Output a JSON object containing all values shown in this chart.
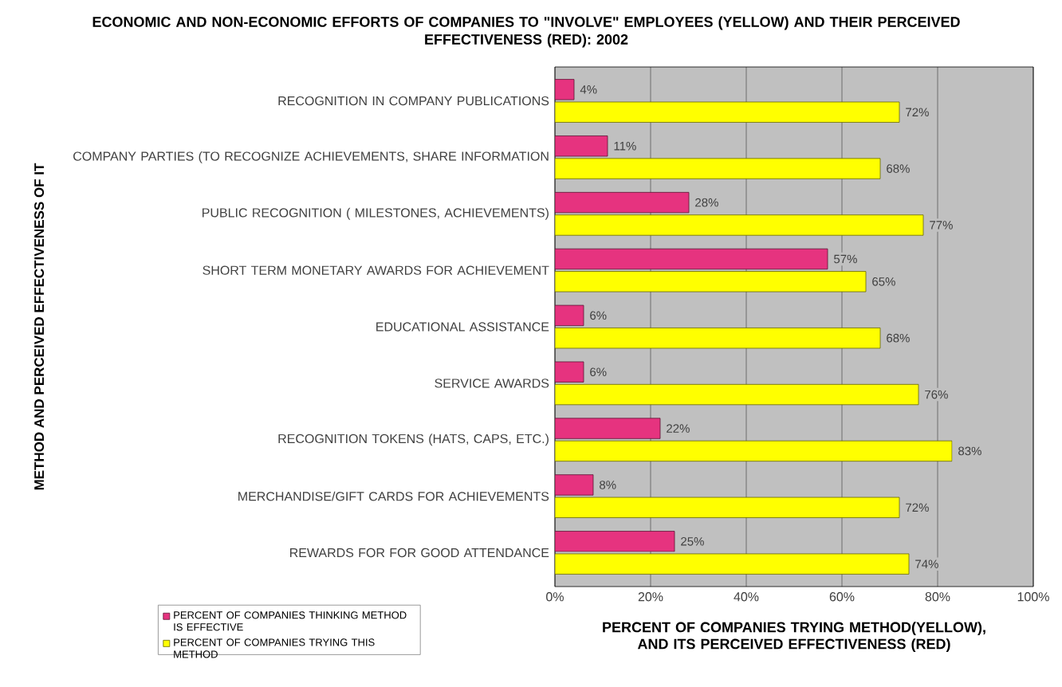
{
  "chart_data": {
    "type": "bar",
    "orientation": "horizontal",
    "title": "ECONOMIC AND NON-ECONOMIC EFFORTS OF COMPANIES TO \"INVOLVE\" EMPLOYEES (YELLOW) AND THEIR PERCEIVED EFFECTIVENESS (RED): 2002",
    "xlabel": "PERCENT OF COMPANIES TRYING METHOD(YELLOW), AND ITS PERCEIVED EFFECTIVENESS (RED)",
    "ylabel": "METHOD AND PERCEIVED EFFECTIVENESS OF IT",
    "categories": [
      "RECOGNITION IN COMPANY PUBLICATIONS",
      "COMPANY PARTIES (TO RECOGNIZE ACHIEVEMENTS, SHARE INFORMATION",
      "PUBLIC RECOGNITION ( MILESTONES, ACHIEVEMENTS)",
      "SHORT TERM MONETARY AWARDS FOR ACHIEVEMENT",
      "EDUCATIONAL ASSISTANCE",
      "SERVICE AWARDS",
      "RECOGNITION TOKENS (HATS, CAPS, ETC.)",
      "MERCHANDISE/GIFT CARDS FOR ACHIEVEMENTS",
      "REWARDS FOR FOR GOOD ATTENDANCE"
    ],
    "series": [
      {
        "name": "PERCENT OF COMPANIES THINKING METHOD IS EFFECTIVE",
        "color": "#e6337f",
        "values": [
          4,
          11,
          28,
          57,
          6,
          6,
          22,
          8,
          25
        ],
        "value_labels": [
          "4%",
          "11%",
          "28%",
          "57%",
          "6%",
          "6%",
          "22%",
          "8%",
          "25%"
        ]
      },
      {
        "name": "PERCENT OF COMPANIES TRYING THIS METHOD",
        "color": "#ffff00",
        "values": [
          72,
          68,
          77,
          65,
          68,
          76,
          83,
          72,
          74
        ],
        "value_labels": [
          "72%",
          "68%",
          "77%",
          "65%",
          "68%",
          "76%",
          "83%",
          "72%",
          "74%"
        ]
      }
    ],
    "xlim": [
      0,
      100
    ],
    "xticks": [
      {
        "value": 0,
        "label": "0%"
      },
      {
        "value": 20,
        "label": "20%"
      },
      {
        "value": 40,
        "label": "40%"
      },
      {
        "value": 60,
        "label": "60%"
      },
      {
        "value": 80,
        "label": "80%"
      },
      {
        "value": 100,
        "label": "100%"
      }
    ],
    "grid": "x",
    "legend": "bottom left"
  }
}
